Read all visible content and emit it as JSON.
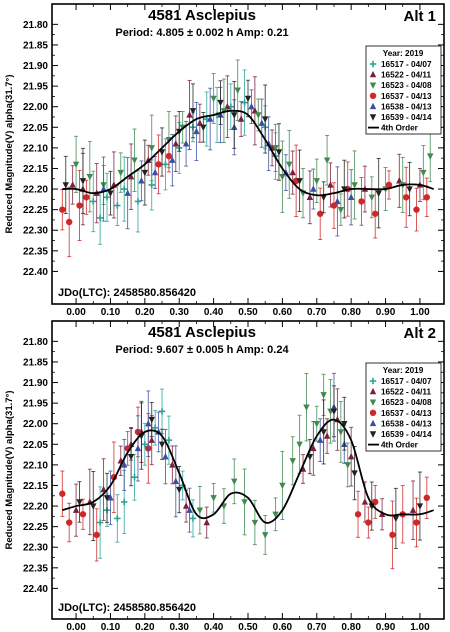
{
  "ylabel": "Reduced Magnitude(V) alpha(31.7°)",
  "chart_data": [
    {
      "type": "scatter",
      "title": "4581 Asclepius",
      "alt_label": "Alt 1",
      "subtitle": "Period: 4.805 ± 0.002 h  Amp: 0.21",
      "jd_label": "JDo(LTC): 2458580.856420",
      "ylim": [
        22.45,
        21.77
      ],
      "yticks": [
        "21.80",
        "21.85",
        "21.90",
        "21.95",
        "22.00",
        "22.05",
        "22.10",
        "22.15",
        "22.20",
        "22.25",
        "22.30",
        "22.35",
        "22.40"
      ],
      "xlim": [
        -0.07,
        1.07
      ],
      "xticks": [
        "0.00",
        "0.10",
        "0.20",
        "0.30",
        "0.40",
        "0.50",
        "0.60",
        "0.70",
        "0.80",
        "0.90",
        "1.00"
      ],
      "legend": {
        "title": "Year: 2019",
        "entries": [
          "16517 - 04/07",
          "16522 - 04/11",
          "16523 - 04/08",
          "16537 - 04/13",
          "16538 - 04/13",
          "16539 - 04/14",
          "4th Order"
        ]
      },
      "fit": {
        "x": [
          -0.04,
          0.0,
          0.05,
          0.1,
          0.15,
          0.2,
          0.25,
          0.3,
          0.35,
          0.4,
          0.45,
          0.5,
          0.55,
          0.6,
          0.65,
          0.7,
          0.75,
          0.8,
          0.85,
          0.9,
          0.95,
          1.0,
          1.04
        ],
        "y": [
          22.2,
          22.2,
          22.21,
          22.2,
          22.17,
          22.14,
          22.1,
          22.06,
          22.03,
          22.02,
          22.01,
          22.02,
          22.08,
          22.15,
          22.2,
          22.215,
          22.21,
          22.2,
          22.2,
          22.2,
          22.19,
          22.19,
          22.2
        ]
      },
      "series": [
        {
          "name": "16517 - 04/07",
          "marker": "plus",
          "color": "#2aa39a",
          "points": [
            [
              0.05,
              22.23
            ],
            [
              0.07,
              22.27
            ],
            [
              0.09,
              22.22
            ],
            [
              0.12,
              22.24
            ],
            [
              0.14,
              22.2
            ],
            [
              0.18,
              22.23
            ],
            [
              0.22,
              22.19
            ],
            [
              0.26,
              22.14
            ],
            [
              0.3,
              22.1
            ],
            [
              0.34,
              22.05
            ],
            [
              0.38,
              22.03
            ],
            [
              0.41,
              22.02
            ],
            [
              0.45,
              22.0
            ],
            [
              0.49,
              21.99
            ],
            [
              0.55,
              22.05
            ],
            [
              0.58,
              22.12
            ]
          ]
        },
        {
          "name": "16522 - 04/11",
          "marker": "tri-up",
          "color": "#7a1f3d",
          "points": [
            [
              -0.01,
              22.19
            ],
            [
              0.02,
              22.2
            ],
            [
              0.06,
              22.21
            ],
            [
              0.11,
              22.19
            ],
            [
              0.16,
              22.17
            ],
            [
              0.21,
              22.13
            ],
            [
              0.29,
              22.09
            ],
            [
              0.33,
              22.02
            ],
            [
              0.36,
              22.04
            ],
            [
              0.44,
              22.0
            ],
            [
              0.48,
              22.03
            ],
            [
              0.52,
              22.01
            ],
            [
              0.57,
              22.1
            ],
            [
              0.63,
              22.16
            ],
            [
              0.68,
              22.22
            ],
            [
              0.74,
              22.19
            ],
            [
              0.84,
              22.2
            ],
            [
              0.94,
              22.18
            ],
            [
              1.0,
              22.19
            ]
          ]
        },
        {
          "name": "16523 - 04/08",
          "marker": "tri-down",
          "color": "#3f8a4f",
          "points": [
            [
              0.0,
              22.14
            ],
            [
              0.04,
              22.17
            ],
            [
              0.08,
              22.19
            ],
            [
              0.13,
              22.16
            ],
            [
              0.17,
              22.13
            ],
            [
              0.22,
              22.1
            ],
            [
              0.27,
              22.08
            ],
            [
              0.31,
              22.05
            ],
            [
              0.4,
              21.98
            ],
            [
              0.43,
              22.01
            ],
            [
              0.47,
              21.96
            ],
            [
              0.53,
              22.02
            ],
            [
              0.58,
              22.1
            ],
            [
              0.6,
              22.17
            ],
            [
              0.62,
              22.14
            ],
            [
              0.66,
              22.21
            ],
            [
              0.7,
              22.18
            ],
            [
              0.73,
              22.13
            ],
            [
              0.77,
              22.25
            ],
            [
              0.81,
              22.19
            ],
            [
              0.86,
              22.22
            ],
            [
              0.9,
              22.2
            ],
            [
              0.95,
              22.19
            ],
            [
              1.01,
              22.16
            ],
            [
              1.03,
              22.12
            ]
          ]
        },
        {
          "name": "16537 - 04/13",
          "marker": "circle",
          "color": "#d02828",
          "points": [
            [
              -0.04,
              22.25
            ],
            [
              -0.02,
              22.28
            ],
            [
              0.01,
              22.24
            ],
            [
              0.03,
              22.22
            ],
            [
              0.24,
              22.14
            ],
            [
              0.27,
              22.12
            ],
            [
              0.64,
              22.18
            ],
            [
              0.71,
              22.26
            ],
            [
              0.75,
              22.24
            ],
            [
              0.79,
              22.2
            ],
            [
              0.83,
              22.23
            ],
            [
              0.87,
              22.26
            ],
            [
              0.91,
              22.19
            ],
            [
              0.96,
              22.22
            ],
            [
              0.99,
              22.25
            ],
            [
              1.02,
              22.22
            ]
          ]
        },
        {
          "name": "16538 - 04/13",
          "marker": "tri-up",
          "color": "#3a4fa3",
          "points": [
            [
              0.08,
              22.2
            ],
            [
              0.15,
              22.21
            ],
            [
              0.19,
              22.18
            ],
            [
              0.23,
              22.16
            ],
            [
              0.28,
              22.13
            ],
            [
              0.32,
              22.09
            ],
            [
              0.35,
              22.06
            ],
            [
              0.39,
              22.03
            ],
            [
              0.42,
              22.02
            ],
            [
              0.46,
              22.05
            ],
            [
              0.51,
              22.0
            ],
            [
              0.54,
              22.04
            ],
            [
              0.56,
              22.09
            ],
            [
              0.61,
              22.16
            ],
            [
              0.69,
              22.2
            ],
            [
              0.76,
              22.23
            ],
            [
              0.8,
              22.22
            ]
          ]
        },
        {
          "name": "16539 - 04/14",
          "marker": "tri-down",
          "color": "#222222",
          "points": [
            [
              -0.03,
              22.19
            ],
            [
              0.02,
              22.18
            ],
            [
              0.1,
              22.21
            ],
            [
              0.2,
              22.16
            ],
            [
              0.25,
              22.11
            ],
            [
              0.3,
              22.06
            ],
            [
              0.34,
              22.01
            ],
            [
              0.37,
              22.05
            ],
            [
              0.42,
              21.99
            ],
            [
              0.46,
              22.02
            ],
            [
              0.5,
              21.98
            ],
            [
              0.55,
              22.03
            ],
            [
              0.59,
              22.11
            ],
            [
              0.65,
              22.18
            ],
            [
              0.72,
              22.22
            ],
            [
              0.78,
              22.2
            ],
            [
              0.88,
              22.21
            ],
            [
              0.97,
              22.2
            ]
          ]
        }
      ]
    },
    {
      "type": "scatter",
      "title": "4581 Asclepius",
      "alt_label": "Alt 2",
      "subtitle": "Period: 9.607 ± 0.005 h  Amp: 0.24",
      "jd_label": "JDo(LTC): 2458580.856420",
      "ylim": [
        22.45,
        21.77
      ],
      "yticks": [
        "21.80",
        "21.85",
        "21.90",
        "21.95",
        "22.00",
        "22.05",
        "22.10",
        "22.15",
        "22.20",
        "22.25",
        "22.30",
        "22.35",
        "22.40"
      ],
      "xlim": [
        -0.07,
        1.07
      ],
      "xticks": [
        "0.00",
        "0.10",
        "0.20",
        "0.30",
        "0.40",
        "0.50",
        "0.60",
        "0.70",
        "0.80",
        "0.90",
        "1.00"
      ],
      "legend": {
        "title": "Year: 2019",
        "entries": [
          "16517 - 04/07",
          "16522 - 04/11",
          "16523 - 04/08",
          "16537 - 04/13",
          "16538 - 04/13",
          "16539 - 04/14",
          "4th Order"
        ]
      },
      "fit": {
        "x": [
          -0.04,
          0.0,
          0.05,
          0.1,
          0.15,
          0.2,
          0.25,
          0.3,
          0.35,
          0.4,
          0.45,
          0.5,
          0.55,
          0.6,
          0.65,
          0.7,
          0.75,
          0.8,
          0.85,
          0.9,
          0.95,
          1.0,
          1.04
        ],
        "y": [
          22.21,
          22.2,
          22.19,
          22.15,
          22.07,
          22.02,
          22.03,
          22.12,
          22.22,
          22.22,
          22.17,
          22.18,
          22.24,
          22.21,
          22.12,
          22.03,
          21.99,
          22.04,
          22.18,
          22.22,
          22.22,
          22.22,
          22.21
        ]
      },
      "series": [
        {
          "name": "16517 - 04/07",
          "marker": "plus",
          "color": "#2aa39a",
          "points": [
            [
              0.07,
              22.24
            ],
            [
              0.09,
              22.21
            ],
            [
              0.12,
              22.23
            ],
            [
              0.14,
              22.19
            ],
            [
              0.17,
              22.13
            ],
            [
              0.2,
              22.05
            ],
            [
              0.23,
              22.01
            ],
            [
              0.25,
              21.97
            ],
            [
              0.27,
              22.04
            ],
            [
              0.31,
              22.15
            ],
            [
              0.34,
              22.23
            ]
          ]
        },
        {
          "name": "16522 - 04/11",
          "marker": "tri-up",
          "color": "#7a1f3d",
          "points": [
            [
              0.0,
              22.21
            ],
            [
              0.04,
              22.19
            ],
            [
              0.08,
              22.16
            ],
            [
              0.13,
              22.09
            ],
            [
              0.16,
              22.05
            ],
            [
              0.19,
              22.02
            ],
            [
              0.22,
              22.04
            ],
            [
              0.28,
              22.1
            ],
            [
              0.32,
              22.2
            ],
            [
              0.38,
              22.24
            ],
            [
              0.66,
              22.11
            ],
            [
              0.69,
              22.06
            ],
            [
              0.73,
              22.03
            ],
            [
              0.76,
              21.99
            ],
            [
              0.8,
              22.08
            ],
            [
              0.84,
              22.19
            ],
            [
              0.89,
              22.22
            ],
            [
              0.98,
              22.21
            ]
          ]
        },
        {
          "name": "16523 - 04/08",
          "marker": "tri-down",
          "color": "#3f8a4f",
          "points": [
            [
              0.36,
              22.21
            ],
            [
              0.4,
              22.18
            ],
            [
              0.43,
              22.2
            ],
            [
              0.46,
              22.14
            ],
            [
              0.49,
              22.19
            ],
            [
              0.52,
              22.24
            ],
            [
              0.55,
              22.27
            ],
            [
              0.58,
              22.22
            ],
            [
              0.6,
              22.15
            ],
            [
              0.63,
              22.09
            ],
            [
              0.65,
              22.05
            ],
            [
              0.67,
              21.96
            ],
            [
              0.7,
              22.0
            ],
            [
              0.72,
              21.93
            ],
            [
              0.74,
              21.97
            ],
            [
              0.77,
              22.02
            ],
            [
              0.79,
              22.1
            ]
          ]
        },
        {
          "name": "16537 - 04/13",
          "marker": "circle",
          "color": "#d02828",
          "points": [
            [
              -0.04,
              22.17
            ],
            [
              -0.02,
              22.24
            ],
            [
              0.02,
              22.22
            ],
            [
              0.06,
              22.27
            ],
            [
              0.11,
              22.13
            ],
            [
              0.15,
              22.06
            ],
            [
              0.18,
              22.02
            ],
            [
              0.21,
              22.06
            ],
            [
              0.82,
              22.22
            ],
            [
              0.85,
              22.24
            ],
            [
              0.87,
              22.19
            ],
            [
              0.92,
              22.27
            ],
            [
              0.95,
              22.22
            ],
            [
              0.99,
              22.24
            ],
            [
              1.02,
              22.18
            ]
          ]
        },
        {
          "name": "16538 - 04/13",
          "marker": "tri-up",
          "color": "#3a4fa3",
          "points": [
            [
              0.1,
              22.18
            ],
            [
              0.14,
              22.1
            ],
            [
              0.18,
              22.06
            ],
            [
              0.21,
              22.0
            ],
            [
              0.24,
              22.02
            ],
            [
              0.26,
              22.08
            ],
            [
              0.29,
              22.14
            ],
            [
              0.33,
              22.21
            ],
            [
              0.71,
              22.04
            ],
            [
              0.75,
              21.96
            ],
            [
              0.78,
              22.05
            ]
          ]
        },
        {
          "name": "16539 - 04/14",
          "marker": "tri-down",
          "color": "#222222",
          "points": [
            [
              0.01,
              22.19
            ],
            [
              0.05,
              22.2
            ],
            [
              0.09,
              22.18
            ],
            [
              0.16,
              22.08
            ],
            [
              0.19,
              22.03
            ],
            [
              0.22,
              21.99
            ],
            [
              0.25,
              22.05
            ],
            [
              0.3,
              22.16
            ],
            [
              0.68,
              22.08
            ],
            [
              0.72,
              22.02
            ],
            [
              0.75,
              21.97
            ],
            [
              0.78,
              22.0
            ],
            [
              0.81,
              22.12
            ],
            [
              0.86,
              22.2
            ],
            [
              0.93,
              22.23
            ],
            [
              1.0,
              22.2
            ]
          ]
        }
      ]
    }
  ]
}
